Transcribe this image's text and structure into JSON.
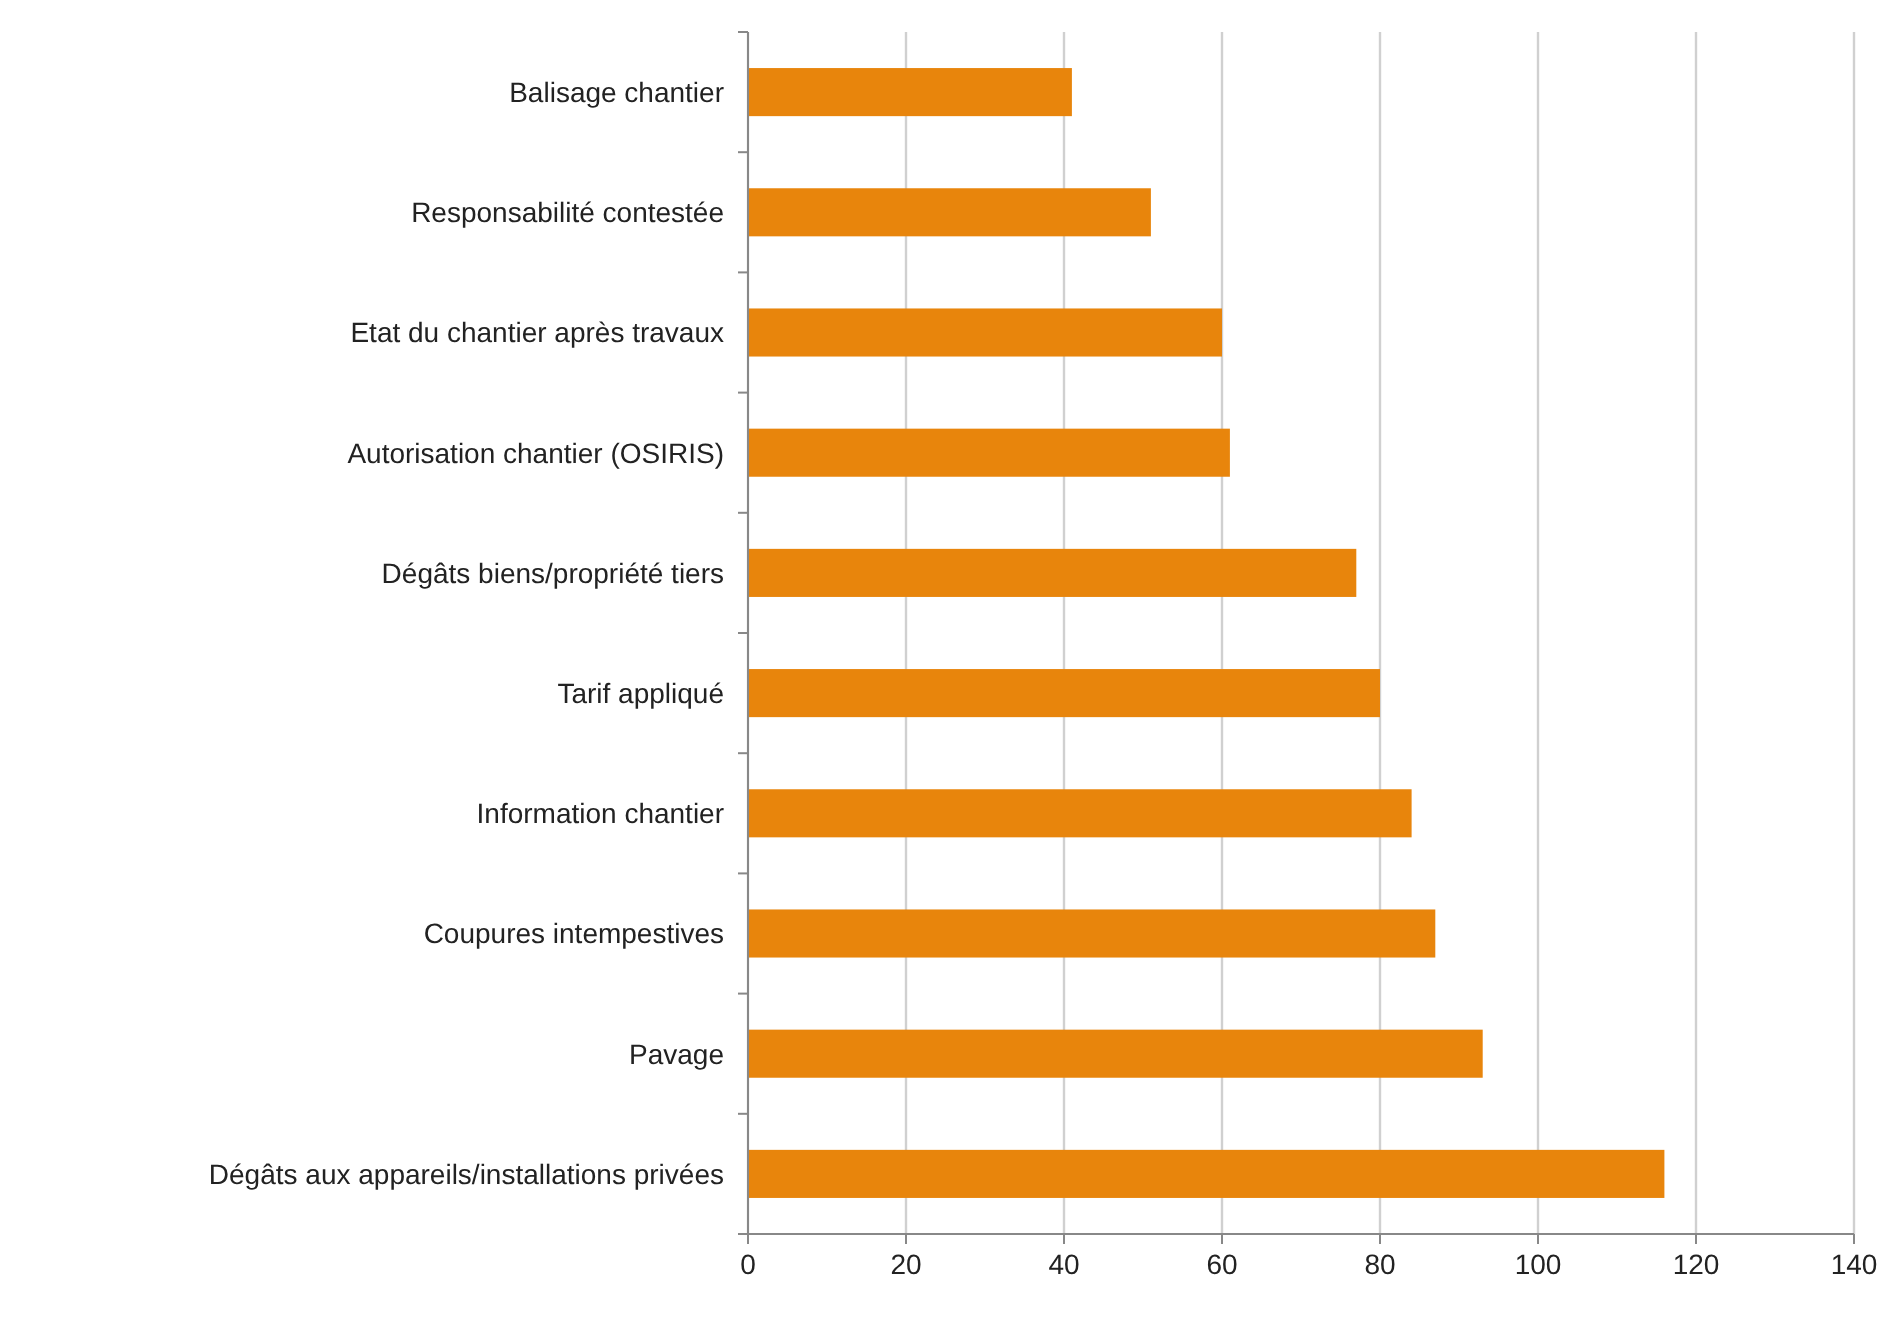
{
  "chart_data": {
    "type": "bar",
    "orientation": "horizontal",
    "categories": [
      "Balisage chantier",
      "Responsabilité contestée",
      "Etat du chantier après travaux",
      "Autorisation chantier (OSIRIS)",
      "Dégâts biens/propriété tiers",
      "Tarif appliqué",
      "Information chantier",
      "Coupures intempestives",
      "Pavage",
      "Dégâts aux appareils/installations privées"
    ],
    "values": [
      41,
      51,
      60,
      61,
      77,
      80,
      84,
      87,
      93,
      116
    ],
    "color": "#e8850c",
    "xlim": [
      0,
      140
    ],
    "xticks": [
      0,
      20,
      40,
      60,
      80,
      100,
      120,
      140
    ],
    "grid": "x"
  }
}
